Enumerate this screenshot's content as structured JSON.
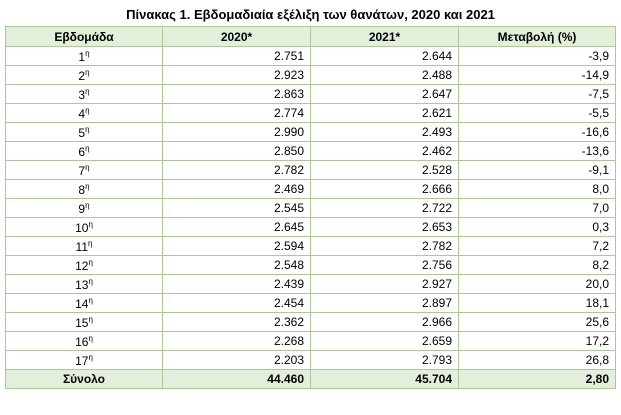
{
  "title": "Πίνακας 1. Εβδομαδιαία εξέλιξη των θανάτων, 2020 και 2021",
  "table": {
    "header": [
      "Εβδομάδα",
      "2020*",
      "2021*",
      "Μεταβολή (%)"
    ],
    "rows": [
      [
        "1",
        "η",
        "2.751",
        "2.644",
        "-3,9"
      ],
      [
        "2",
        "η",
        "2.923",
        "2.488",
        "-14,9"
      ],
      [
        "3",
        "η",
        "2.863",
        "2.647",
        "-7,5"
      ],
      [
        "4",
        "η",
        "2.774",
        "2.621",
        "-5,5"
      ],
      [
        "5",
        "η",
        "2.990",
        "2.493",
        "-16,6"
      ],
      [
        "6",
        "η",
        "2.850",
        "2.462",
        "-13,6"
      ],
      [
        "7",
        "η",
        "2.782",
        "2.528",
        "-9,1"
      ],
      [
        "8",
        "η",
        "2.469",
        "2.666",
        "8,0"
      ],
      [
        "9",
        "η",
        "2.545",
        "2.722",
        "7,0"
      ],
      [
        "10",
        "η",
        "2.645",
        "2.653",
        "0,3"
      ],
      [
        "11",
        "η",
        "2.594",
        "2.782",
        "7,2"
      ],
      [
        "12",
        "η",
        "2.548",
        "2.756",
        "8,2"
      ],
      [
        "13",
        "η",
        "2.439",
        "2.927",
        "20,0"
      ],
      [
        "14",
        "η",
        "2.454",
        "2.897",
        "18,1"
      ],
      [
        "15",
        "η",
        "2.362",
        "2.966",
        "25,6"
      ],
      [
        "16",
        "η",
        "2.268",
        "2.659",
        "17,2"
      ],
      [
        "17",
        "η",
        "2.203",
        "2.793",
        "26,8"
      ]
    ],
    "total": [
      "Σύνολο",
      "44.460",
      "45.704",
      "2,80"
    ]
  }
}
